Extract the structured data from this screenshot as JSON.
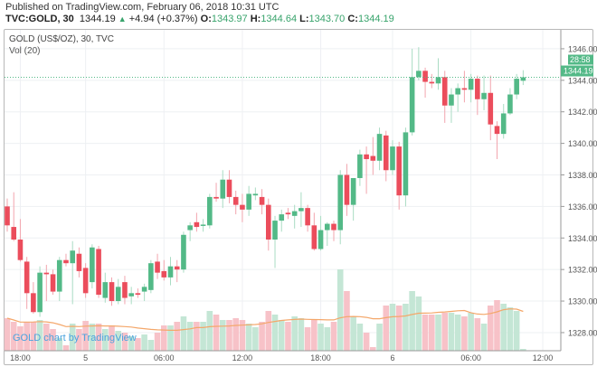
{
  "header": {
    "published": "Published on TradingView.com, February 06, 2018 10:31 UTC",
    "symbol": "TVC:GOLD, 30",
    "last": "1344.19",
    "change": "+4.94 (+0.37%)",
    "o_label": "O:",
    "o": "1343.97",
    "h_label": "H:",
    "h": "1344.64",
    "l_label": "L:",
    "l": "1343.70",
    "c_label": "C:",
    "c": "1344.19"
  },
  "legend": {
    "title": "GOLD (US$/OZ), 30, TVC",
    "volume": "Vol (20)"
  },
  "watermark": "GOLD chart by TradingView",
  "price_label": {
    "price": "1344.19",
    "countdown": "28:58"
  },
  "colors": {
    "up": "#53b987",
    "down": "#eb4d5c",
    "vol_up": "#c4e6d5",
    "vol_down": "#f7c2c8",
    "ma": "#f4a76a",
    "grid": "#eef0f3"
  },
  "chart_data": {
    "type": "candlestick",
    "title": "GOLD (US$/OZ), 30, TVC",
    "interval": "30 min",
    "ylim": [
      1326.85,
      1347.2
    ],
    "y_ticks": [
      "1328.00",
      "1330.00",
      "1332.00",
      "1334.00",
      "1336.00",
      "1338.00",
      "1340.00",
      "1342.00",
      "1344.00",
      "1346.00"
    ],
    "x_ticks": [
      {
        "index": 2,
        "label": "18:00"
      },
      {
        "index": 12,
        "label": "5"
      },
      {
        "index": 24,
        "label": "06:00"
      },
      {
        "index": 36,
        "label": "12:00"
      },
      {
        "index": 48,
        "label": "18:00"
      },
      {
        "index": 59,
        "label": "6"
      },
      {
        "index": 71,
        "label": "06:00"
      },
      {
        "index": 82,
        "label": "12:00"
      }
    ],
    "ohlc": [
      [
        1336.0,
        1336.5,
        1334.4,
        1334.8
      ],
      [
        1334.7,
        1336.9,
        1333.8,
        1333.9
      ],
      [
        1333.9,
        1335.2,
        1332.5,
        1332.6
      ],
      [
        1332.5,
        1332.8,
        1329.5,
        1330.5
      ],
      [
        1330.5,
        1331.2,
        1329.2,
        1329.3
      ],
      [
        1329.3,
        1332.2,
        1329.0,
        1331.8
      ],
      [
        1331.8,
        1332.3,
        1330.0,
        1331.7
      ],
      [
        1331.7,
        1332.0,
        1330.4,
        1330.6
      ],
      [
        1330.6,
        1332.8,
        1330.0,
        1332.6
      ],
      [
        1332.6,
        1333.0,
        1332.2,
        1332.4
      ],
      [
        1332.4,
        1333.8,
        1329.8,
        1333.2
      ],
      [
        1333.0,
        1333.4,
        1331.5,
        1331.9
      ],
      [
        1332.1,
        1332.4,
        1330.2,
        1330.5
      ],
      [
        1331.2,
        1333.6,
        1330.8,
        1333.4
      ],
      [
        1333.3,
        1333.5,
        1330.2,
        1330.4
      ],
      [
        1330.2,
        1331.8,
        1329.9,
        1331.2
      ],
      [
        1331.2,
        1331.5,
        1329.7,
        1330.0
      ],
      [
        1330.0,
        1331.4,
        1329.8,
        1330.9
      ],
      [
        1331.2,
        1331.6,
        1329.8,
        1330.2
      ],
      [
        1330.3,
        1330.9,
        1329.8,
        1330.5
      ],
      [
        1330.5,
        1330.8,
        1330.2,
        1330.4
      ],
      [
        1330.6,
        1331.1,
        1330.0,
        1330.9
      ],
      [
        1330.7,
        1332.6,
        1330.5,
        1332.4
      ],
      [
        1332.5,
        1333.0,
        1331.4,
        1331.8
      ],
      [
        1331.9,
        1332.6,
        1331.3,
        1331.5
      ],
      [
        1331.5,
        1332.8,
        1331.0,
        1332.2
      ],
      [
        1332.2,
        1332.6,
        1331.2,
        1332.0
      ],
      [
        1332.0,
        1334.4,
        1331.8,
        1334.2
      ],
      [
        1334.5,
        1335.0,
        1333.8,
        1334.8
      ],
      [
        1335.0,
        1335.6,
        1334.4,
        1334.7
      ],
      [
        1334.8,
        1335.2,
        1334.4,
        1334.85
      ],
      [
        1334.8,
        1336.8,
        1334.6,
        1336.6
      ],
      [
        1336.6,
        1337.5,
        1336.3,
        1336.5
      ],
      [
        1336.5,
        1338.3,
        1335.9,
        1337.7
      ],
      [
        1337.7,
        1338.3,
        1336.2,
        1336.6
      ],
      [
        1336.6,
        1337.0,
        1335.5,
        1336.1
      ],
      [
        1336.1,
        1336.8,
        1335.0,
        1335.8
      ],
      [
        1335.8,
        1337.3,
        1335.4,
        1336.8
      ],
      [
        1336.7,
        1337.2,
        1336.4,
        1336.8
      ],
      [
        1336.6,
        1337.1,
        1335.5,
        1336.1
      ],
      [
        1336.1,
        1336.5,
        1333.2,
        1333.9
      ],
      [
        1333.9,
        1335.4,
        1332.1,
        1335.1
      ],
      [
        1335.1,
        1335.8,
        1334.4,
        1335.5
      ],
      [
        1335.6,
        1335.9,
        1335.2,
        1335.5
      ],
      [
        1335.4,
        1336.1,
        1334.6,
        1335.7
      ],
      [
        1335.7,
        1336.9,
        1334.7,
        1335.9
      ],
      [
        1335.9,
        1336.1,
        1334.4,
        1334.8
      ],
      [
        1334.8,
        1335.6,
        1333.2,
        1333.3
      ],
      [
        1333.3,
        1335.4,
        1333.2,
        1334.5
      ],
      [
        1334.5,
        1335.0,
        1333.5,
        1334.9
      ],
      [
        1334.9,
        1335.1,
        1333.8,
        1334.5
      ],
      [
        1334.5,
        1338.3,
        1333.6,
        1338.0
      ],
      [
        1338.0,
        1338.7,
        1335.4,
        1336.1
      ],
      [
        1336.1,
        1337.8,
        1335.1,
        1337.8
      ],
      [
        1337.8,
        1339.6,
        1337.3,
        1339.3
      ],
      [
        1339.3,
        1339.8,
        1336.8,
        1339.0
      ],
      [
        1339.2,
        1340.4,
        1338.0,
        1338.9
      ],
      [
        1338.9,
        1341.0,
        1338.3,
        1340.6
      ],
      [
        1340.5,
        1340.8,
        1337.6,
        1338.3
      ],
      [
        1338.3,
        1340.2,
        1338.0,
        1339.8
      ],
      [
        1339.8,
        1340.1,
        1335.8,
        1336.7
      ],
      [
        1336.7,
        1341.0,
        1336.0,
        1340.7
      ],
      [
        1340.7,
        1346.0,
        1340.5,
        1344.2
      ],
      [
        1344.2,
        1346.1,
        1344.0,
        1344.6
      ],
      [
        1344.6,
        1344.8,
        1342.9,
        1343.9
      ],
      [
        1343.9,
        1344.4,
        1343.5,
        1343.8
      ],
      [
        1343.8,
        1345.4,
        1343.4,
        1344.2
      ],
      [
        1344.2,
        1344.6,
        1341.3,
        1342.4
      ],
      [
        1342.4,
        1343.5,
        1341.3,
        1343.1
      ],
      [
        1343.1,
        1343.8,
        1342.0,
        1343.5
      ],
      [
        1343.5,
        1344.6,
        1342.6,
        1343.4
      ],
      [
        1343.4,
        1344.4,
        1342.6,
        1344.1
      ],
      [
        1344.1,
        1344.3,
        1341.8,
        1342.8
      ],
      [
        1342.8,
        1344.3,
        1342.1,
        1343.2
      ],
      [
        1343.2,
        1344.3,
        1340.2,
        1341.2
      ],
      [
        1341.1,
        1341.4,
        1339.0,
        1340.6
      ],
      [
        1340.6,
        1342.5,
        1340.3,
        1341.9
      ],
      [
        1341.9,
        1343.5,
        1341.8,
        1343.1
      ],
      [
        1343.1,
        1344.4,
        1342.8,
        1344.1
      ],
      [
        1343.97,
        1344.64,
        1343.7,
        1344.19
      ]
    ],
    "volume": [
      36,
      32,
      27,
      32,
      32,
      34,
      30,
      24,
      14,
      6,
      30,
      24,
      33,
      30,
      30,
      24,
      28,
      22,
      20,
      16,
      14,
      18,
      12,
      20,
      28,
      28,
      32,
      38,
      32,
      32,
      32,
      44,
      40,
      34,
      34,
      36,
      34,
      30,
      26,
      32,
      44,
      40,
      34,
      32,
      38,
      36,
      26,
      34,
      30,
      26,
      32,
      90,
      66,
      38,
      30,
      20,
      4,
      30,
      50,
      52,
      50,
      52,
      66,
      60,
      40,
      40,
      40,
      42,
      42,
      40,
      38,
      42,
      36,
      30,
      50,
      56,
      52,
      48,
      44,
      2
    ],
    "volume_ma_period": 20,
    "last_price": 1344.19
  }
}
